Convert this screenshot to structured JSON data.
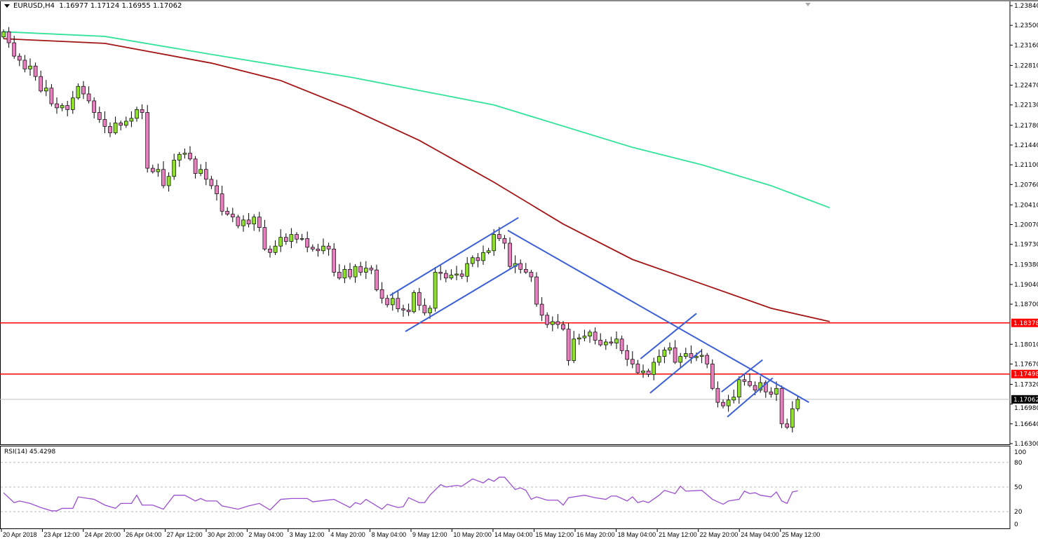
{
  "header": {
    "symbol": "EURUSD,H4",
    "ohlc": "1.16977 1.17124 1.16955 1.17062"
  },
  "chart_data": [
    {
      "type": "candlestick",
      "symbol": "EURUSD",
      "timeframe": "H4",
      "ylim": [
        1.163,
        1.2384
      ],
      "price_ticks": [
        "1.23840",
        "1.23500",
        "1.23160",
        "1.22810",
        "1.22470",
        "1.22130",
        "1.21780",
        "1.21440",
        "1.21100",
        "1.20760",
        "1.20410",
        "1.20070",
        "1.19730",
        "1.19380",
        "1.19040",
        "1.18700",
        "1.18010",
        "1.17670",
        "1.17320",
        "1.16980",
        "1.16640",
        "1.16300"
      ],
      "time_ticks": [
        "20 Apr 2018",
        "23 Apr 12:00",
        "24 Apr 20:00",
        "26 Apr 04:00",
        "27 Apr 12:00",
        "30 Apr 20:00",
        "2 May 04:00",
        "3 May 12:00",
        "4 May 20:00",
        "8 May 04:00",
        "9 May 12:00",
        "10 May 20:00",
        "14 May 04:00",
        "15 May 12:00",
        "16 May 20:00",
        "18 May 04:00",
        "21 May 12:00",
        "22 May 20:00",
        "24 May 04:00",
        "25 May 12:00"
      ],
      "first_open": 1.233,
      "closes": [
        1.2339,
        1.232,
        1.2297,
        1.229,
        1.2275,
        1.228,
        1.2262,
        1.2237,
        1.2242,
        1.2215,
        1.2208,
        1.2212,
        1.2205,
        1.2225,
        1.2245,
        1.2232,
        1.222,
        1.22,
        1.2188,
        1.2176,
        1.2165,
        1.2182,
        1.2178,
        1.2185,
        1.219,
        1.2205,
        1.22,
        1.2104,
        1.2098,
        1.2102,
        1.2074,
        1.209,
        1.2118,
        1.2128,
        1.213,
        1.212,
        1.2095,
        1.2102,
        1.2085,
        1.2074,
        1.206,
        1.203,
        1.2025,
        1.202,
        1.2005,
        1.2015,
        1.2008,
        1.202,
        1.2002,
        1.1965,
        1.1959,
        1.197,
        1.1985,
        1.1978,
        1.199,
        1.1982,
        1.1983,
        1.1968,
        1.1965,
        1.1962,
        1.197,
        1.1965,
        1.1925,
        1.1915,
        1.193,
        1.1917,
        1.1935,
        1.1925,
        1.1932,
        1.1929,
        1.1895,
        1.188,
        1.1869,
        1.188,
        1.1862,
        1.186,
        1.1857,
        1.189,
        1.1868,
        1.1855,
        1.1863,
        1.1925,
        1.1923,
        1.1915,
        1.192,
        1.1922,
        1.1918,
        1.194,
        1.195,
        1.1945,
        1.1959,
        1.1962,
        1.199,
        1.1983,
        1.1975,
        1.1935,
        1.194,
        1.193,
        1.1925,
        1.1917,
        1.187,
        1.1851,
        1.1835,
        1.184,
        1.1835,
        1.1827,
        1.1773,
        1.181,
        1.1812,
        1.1815,
        1.1822,
        1.1808,
        1.18,
        1.1805,
        1.1803,
        1.181,
        1.179,
        1.1775,
        1.1767,
        1.1752,
        1.1755,
        1.1749,
        1.177,
        1.178,
        1.1791,
        1.1795,
        1.177,
        1.178,
        1.1785,
        1.1778,
        1.178,
        1.1782,
        1.1767,
        1.1725,
        1.1701,
        1.1695,
        1.1705,
        1.171,
        1.174,
        1.1737,
        1.173,
        1.1722,
        1.1735,
        1.1719,
        1.1715,
        1.1725,
        1.1664,
        1.1658,
        1.169,
        1.1706
      ],
      "last_price": "1.17062",
      "moving_averages": [
        {
          "color": "#33e39a",
          "points": [
            [
              0,
              1.2339
            ],
            [
              19,
              1.2331
            ],
            [
              39,
              1.23
            ],
            [
              65,
              1.2261
            ],
            [
              92,
              1.2213
            ],
            [
              118,
              1.214
            ],
            [
              131,
              1.211
            ],
            [
              144,
              1.2074
            ],
            [
              155,
              1.2036
            ]
          ]
        },
        {
          "color": "#a31515",
          "points": [
            [
              0,
              1.2327
            ],
            [
              19,
              1.2319
            ],
            [
              39,
              1.2285
            ],
            [
              52,
              1.2255
            ],
            [
              65,
              1.2207
            ],
            [
              78,
              1.2152
            ],
            [
              92,
              1.208
            ],
            [
              105,
              1.2008
            ],
            [
              118,
              1.1947
            ],
            [
              131,
              1.1905
            ],
            [
              144,
              1.1863
            ],
            [
              155,
              1.184
            ]
          ]
        }
      ],
      "horizontal_levels": [
        {
          "price": 1.18378,
          "label": "1.18378",
          "color": "#ff0000"
        },
        {
          "price": 1.17498,
          "label": "1.17498",
          "color": "#ff0000"
        }
      ],
      "trendlines": [
        [
          [
            72.5,
            1.1885
          ],
          [
            96.6,
            1.2019
          ]
        ],
        [
          [
            75.4,
            1.1823
          ],
          [
            96.6,
            1.1939
          ]
        ],
        [
          [
            94.6,
            1.1997
          ],
          [
            151.1,
            1.1701
          ]
        ],
        [
          [
            119.5,
            1.1776
          ],
          [
            130,
            1.1854
          ]
        ],
        [
          [
            121.3,
            1.1717
          ],
          [
            130.9,
            1.179
          ]
        ],
        [
          [
            134.7,
            1.1719
          ],
          [
            142.4,
            1.1774
          ]
        ],
        [
          [
            135.8,
            1.1676
          ],
          [
            144.3,
            1.1743
          ]
        ]
      ],
      "colors": {
        "bull": "#8fe02a",
        "bear": "#e87fbf",
        "trendline": "#3a5fd6",
        "last_price_bg": "#000000"
      }
    },
    {
      "type": "line",
      "title": "RSI(14) 45.4298",
      "ylim": [
        0,
        100
      ],
      "levels": [
        80,
        50,
        20
      ],
      "y_ticks": [
        "100",
        "80",
        "50",
        "20",
        "0"
      ],
      "color": "#9b4fd0",
      "points": [
        [
          0,
          43
        ],
        [
          2,
          31
        ],
        [
          3,
          33
        ],
        [
          5,
          30
        ],
        [
          7,
          25
        ],
        [
          9,
          21
        ],
        [
          10,
          21
        ],
        [
          11,
          24
        ],
        [
          13,
          24
        ],
        [
          14,
          38
        ],
        [
          17,
          35
        ],
        [
          19,
          28
        ],
        [
          21,
          24
        ],
        [
          22,
          30
        ],
        [
          24,
          30
        ],
        [
          25,
          40
        ],
        [
          26,
          28
        ],
        [
          28,
          28
        ],
        [
          30,
          23
        ],
        [
          32,
          40
        ],
        [
          34,
          40
        ],
        [
          36,
          33
        ],
        [
          37,
          36
        ],
        [
          38,
          33
        ],
        [
          40,
          33
        ],
        [
          41,
          27
        ],
        [
          44,
          23
        ],
        [
          46,
          27
        ],
        [
          48,
          30
        ],
        [
          50,
          22
        ],
        [
          52,
          35
        ],
        [
          54,
          36
        ],
        [
          57,
          36
        ],
        [
          58,
          32
        ],
        [
          62,
          35
        ],
        [
          65,
          25
        ],
        [
          66,
          31
        ],
        [
          67,
          29
        ],
        [
          68,
          35
        ],
        [
          71,
          23
        ],
        [
          72,
          29
        ],
        [
          74,
          25
        ],
        [
          75,
          26
        ],
        [
          76,
          37
        ],
        [
          78,
          31
        ],
        [
          79,
          31
        ],
        [
          80,
          40
        ],
        [
          82,
          53
        ],
        [
          83,
          50
        ],
        [
          85,
          52
        ],
        [
          86,
          51
        ],
        [
          88,
          60
        ],
        [
          90,
          55
        ],
        [
          91,
          60
        ],
        [
          92,
          57
        ],
        [
          93,
          62
        ],
        [
          94,
          62
        ],
        [
          96,
          47
        ],
        [
          97,
          49
        ],
        [
          98,
          46
        ],
        [
          99,
          35
        ],
        [
          100,
          38
        ],
        [
          102,
          34
        ],
        [
          104,
          34
        ],
        [
          105,
          28
        ],
        [
          106,
          37
        ],
        [
          109,
          40
        ],
        [
          111,
          37
        ],
        [
          113,
          35
        ],
        [
          114,
          39
        ],
        [
          115,
          39
        ],
        [
          117,
          33
        ],
        [
          118,
          38
        ],
        [
          119,
          31
        ],
        [
          120,
          33
        ],
        [
          121,
          31
        ],
        [
          123,
          40
        ],
        [
          124,
          46
        ],
        [
          126,
          42
        ],
        [
          127,
          51
        ],
        [
          128,
          45
        ],
        [
          131,
          46
        ],
        [
          133,
          35
        ],
        [
          135,
          29
        ],
        [
          136,
          33
        ],
        [
          138,
          35
        ],
        [
          139,
          45
        ],
        [
          140,
          42
        ],
        [
          141,
          43
        ],
        [
          142,
          40
        ],
        [
          144,
          38
        ],
        [
          145,
          44
        ],
        [
          146,
          33
        ],
        [
          147,
          30
        ],
        [
          148,
          44
        ],
        [
          149,
          45.4
        ]
      ]
    }
  ]
}
